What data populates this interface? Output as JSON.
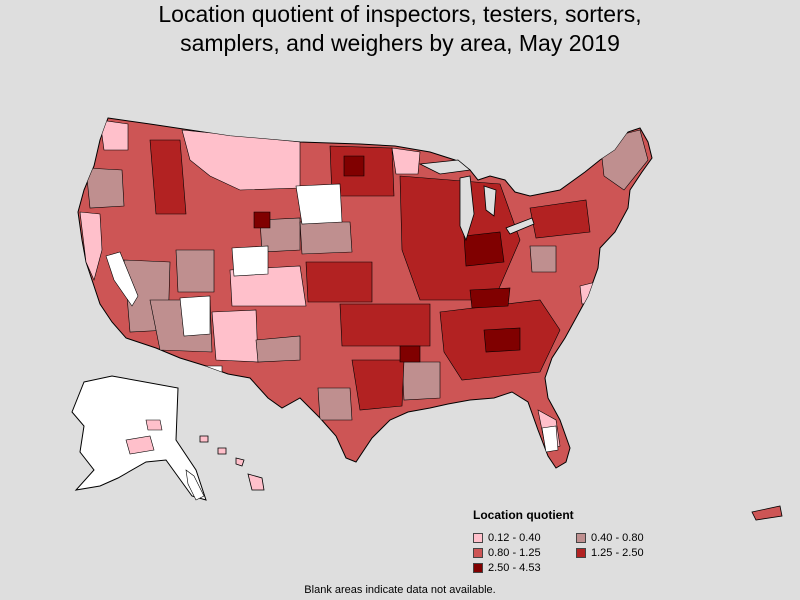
{
  "title_lines": [
    "Location quotient of inspectors, testers, sorters,",
    "samplers, and weighers by area, May 2019"
  ],
  "legend": {
    "title": "Location quotient",
    "items": [
      {
        "label": "0.12 - 0.40",
        "color": "#ffc0cb"
      },
      {
        "label": "0.40 - 0.80",
        "color": "#bf8f8f"
      },
      {
        "label": "0.80 - 1.25",
        "color": "#cd5555"
      },
      {
        "label": "1.25 - 2.50",
        "color": "#b22222"
      },
      {
        "label": "2.50 - 4.53",
        "color": "#800000"
      }
    ]
  },
  "footnote": "Blank areas indicate data not available.",
  "colors": {
    "background": "#dedede",
    "no_data": "#ffffff",
    "border": "#000000"
  }
}
